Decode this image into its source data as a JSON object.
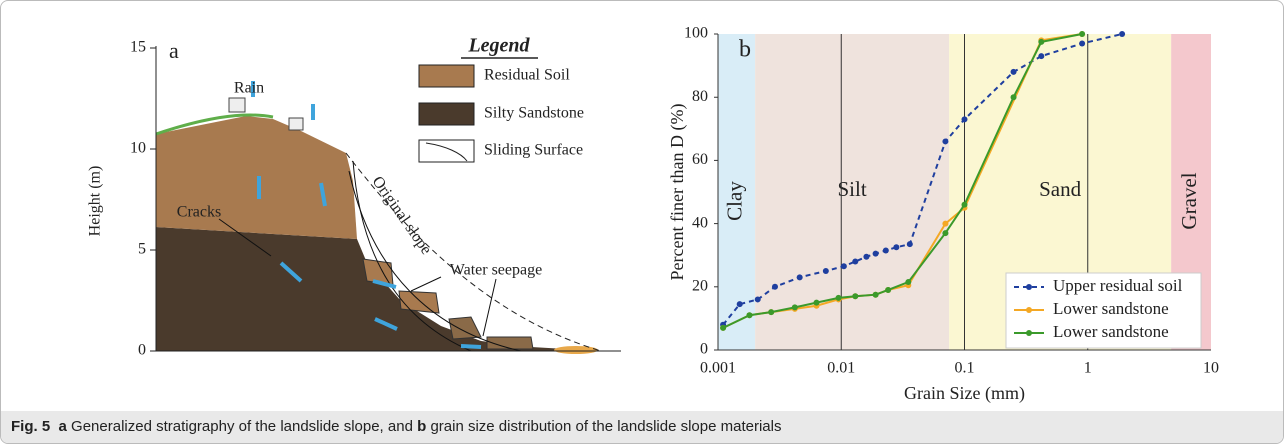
{
  "figure_a": {
    "panel_label": "a",
    "y_label": "Height (m)",
    "yticks": [
      0,
      5,
      10,
      15
    ],
    "rain": "Rain",
    "legend_title": "Legend",
    "legend": [
      "Residual Soil",
      "Silty Sandstone",
      "Sliding Surface"
    ],
    "original_slope": "Original slope",
    "cracks": "Cracks",
    "water_seepage": "Water seepage"
  },
  "chart_data": {
    "type": "line",
    "panel_label": "b",
    "x_label": "Grain Size (mm)",
    "y_label": "Percent finer than D (%)",
    "xscale": "log",
    "xlim": [
      0.001,
      10
    ],
    "xticks": [
      0.001,
      0.01,
      0.1,
      1,
      10
    ],
    "ylim": [
      0,
      100
    ],
    "yticks": [
      0,
      20,
      40,
      60,
      80,
      100
    ],
    "grid": "x",
    "legend_position": "lower right",
    "regions": [
      {
        "name": "Clay",
        "from": 0.001,
        "to": 0.002,
        "color": "#d9edf7",
        "rotate": true
      },
      {
        "name": "Silt",
        "from": 0.002,
        "to": 0.075,
        "color": "#efe3dd",
        "rotate": false
      },
      {
        "name": "Sand",
        "from": 0.075,
        "to": 4.75,
        "color": "#fbf7d2",
        "rotate": false
      },
      {
        "name": "Gravel",
        "from": 4.75,
        "to": 10,
        "color": "#f4c8cd",
        "rotate": true
      }
    ],
    "series": [
      {
        "name": "Upper residual soil",
        "color": "#1f3f9f",
        "dashed": true,
        "x": [
          0.0011,
          0.0015,
          0.0021,
          0.0029,
          0.0046,
          0.0075,
          0.0105,
          0.013,
          0.016,
          0.019,
          0.023,
          0.028,
          0.036,
          0.07,
          0.1,
          0.25,
          0.42,
          0.9,
          1.9
        ],
        "values": [
          8,
          14.5,
          16,
          20,
          23,
          25,
          26.5,
          28,
          29.5,
          30.5,
          31.5,
          32.5,
          33.5,
          66,
          73,
          88,
          93,
          97,
          100
        ]
      },
      {
        "name": "Lower sandstone",
        "color": "#f4a824",
        "dashed": false,
        "x": [
          0.0011,
          0.0018,
          0.0027,
          0.0042,
          0.0063,
          0.0095,
          0.013,
          0.019,
          0.024,
          0.035,
          0.07,
          0.1,
          0.42,
          0.9
        ],
        "values": [
          7,
          11,
          12,
          13,
          14,
          16,
          17,
          17.5,
          19,
          20.5,
          40,
          45,
          98,
          100
        ]
      },
      {
        "name": "Lower sandstone",
        "color": "#3b9a2b",
        "dashed": false,
        "x": [
          0.0011,
          0.0018,
          0.0027,
          0.0042,
          0.0063,
          0.0095,
          0.013,
          0.019,
          0.024,
          0.035,
          0.07,
          0.1,
          0.25,
          0.42,
          0.9
        ],
        "values": [
          7,
          11,
          12,
          13.5,
          15,
          16.5,
          17,
          17.5,
          19,
          21.5,
          37,
          46,
          80,
          97.5,
          100
        ]
      }
    ]
  },
  "caption": {
    "fig": "Fig. 5",
    "a": "a",
    "text_a": "Generalized stratigraphy of the landslide slope, and",
    "b": "b",
    "text_b": "grain size distribution of the landslide slope materials"
  }
}
